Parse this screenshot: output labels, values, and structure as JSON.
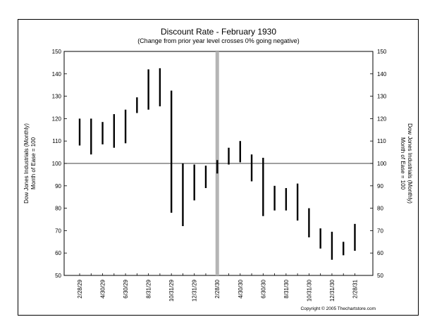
{
  "chart_data": {
    "type": "hlc-bar",
    "title": "Discount Rate - February 1930",
    "subtitle": "(Change from prior year level crosses 0% going negative)",
    "ylabel_left_line1": "Dow Jones Industrials (Monthly)",
    "ylabel_left_line2": "Month of Ease = 100",
    "ylabel_right_line1": "Dow Jones Industrials (Monthly)",
    "ylabel_right_line2": "Month of Ease = 100",
    "copyright": "Copyright © 2005 Thechartstore.com",
    "ylim": [
      50,
      150
    ],
    "yticks": [
      50,
      60,
      70,
      80,
      90,
      100,
      110,
      120,
      130,
      140,
      150
    ],
    "reference_line": 100,
    "x_tick_labels": [
      "2/28/29",
      "4/30/29",
      "6/30/29",
      "8/31/29",
      "10/31/29",
      "12/31/29",
      "2/28/30",
      "4/30/30",
      "6/30/30",
      "8/31/30",
      "10/31/30",
      "12/31/30",
      "2/28/31"
    ],
    "event_month": "2/28/30",
    "bars": [
      {
        "month": "2/28/29",
        "high": 120,
        "low": 108
      },
      {
        "month": "3/31/29",
        "high": 120,
        "low": 104
      },
      {
        "month": "4/30/29",
        "high": 118.5,
        "low": 108.5
      },
      {
        "month": "5/31/29",
        "high": 122,
        "low": 107
      },
      {
        "month": "6/30/29",
        "high": 124,
        "low": 109
      },
      {
        "month": "7/31/29",
        "high": 129.5,
        "low": 122.5
      },
      {
        "month": "8/31/29",
        "high": 142,
        "low": 124
      },
      {
        "month": "9/30/29",
        "high": 142.5,
        "low": 125.5
      },
      {
        "month": "10/31/29",
        "high": 132.5,
        "low": 78
      },
      {
        "month": "11/30/29",
        "high": 100,
        "low": 72
      },
      {
        "month": "12/31/29",
        "high": 99.5,
        "low": 83.5
      },
      {
        "month": "1/31/30",
        "high": 99,
        "low": 89
      },
      {
        "month": "2/28/30",
        "high": 101.5,
        "low": 95.5
      },
      {
        "month": "3/31/30",
        "high": 107,
        "low": 99.5
      },
      {
        "month": "4/30/30",
        "high": 110,
        "low": 100.5
      },
      {
        "month": "5/31/30",
        "high": 104,
        "low": 92
      },
      {
        "month": "6/30/30",
        "high": 102.5,
        "low": 76.5
      },
      {
        "month": "7/31/30",
        "high": 90,
        "low": 79
      },
      {
        "month": "8/31/30",
        "high": 89,
        "low": 79
      },
      {
        "month": "9/30/30",
        "high": 91,
        "low": 74.5
      },
      {
        "month": "10/31/30",
        "high": 80,
        "low": 67
      },
      {
        "month": "11/30/30",
        "high": 71,
        "low": 62
      },
      {
        "month": "12/31/30",
        "high": 69.5,
        "low": 57
      },
      {
        "month": "1/31/31",
        "high": 65,
        "low": 59
      },
      {
        "month": "2/28/31",
        "high": 73,
        "low": 61
      }
    ]
  }
}
